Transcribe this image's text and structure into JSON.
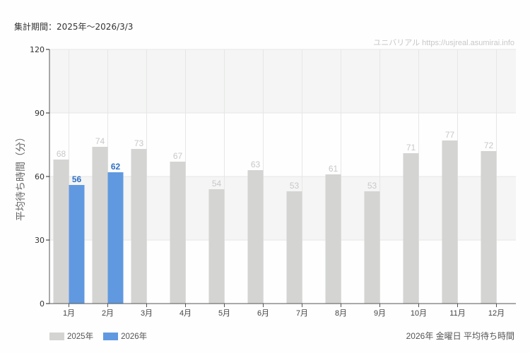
{
  "header": {
    "period_label": "集計期間：2025年～2026/3/3",
    "credit": "ユニバリアル  https://usjreal.asumirai.info"
  },
  "footer": {
    "subtitle": "2026年 金曜日 平均待ち時間"
  },
  "colors": {
    "series_2025": "#d4d4d2",
    "series_2026": "#6199e0",
    "label_2025": "#c8c8c8",
    "label_2026": "#2f6fc4",
    "band": "#f4f5f4",
    "grid": "#e6e6e6",
    "axis": "#555555"
  },
  "chart_data": {
    "type": "bar",
    "title": "2026年 金曜日 平均待ち時間",
    "xlabel": "",
    "ylabel": "平均待ち時間（分）",
    "ylim": [
      0,
      120
    ],
    "yticks": [
      0,
      30,
      60,
      90,
      120
    ],
    "grid": true,
    "legend_position": "bottom-left",
    "categories": [
      "1月",
      "2月",
      "3月",
      "4月",
      "5月",
      "6月",
      "7月",
      "8月",
      "9月",
      "10月",
      "11月",
      "12月"
    ],
    "series": [
      {
        "name": "2025年",
        "values": [
          68,
          74,
          73,
          67,
          54,
          63,
          53,
          61,
          53,
          71,
          77,
          72
        ]
      },
      {
        "name": "2026年",
        "values": [
          56,
          62,
          null,
          null,
          null,
          null,
          null,
          null,
          null,
          null,
          null,
          null
        ]
      }
    ]
  }
}
